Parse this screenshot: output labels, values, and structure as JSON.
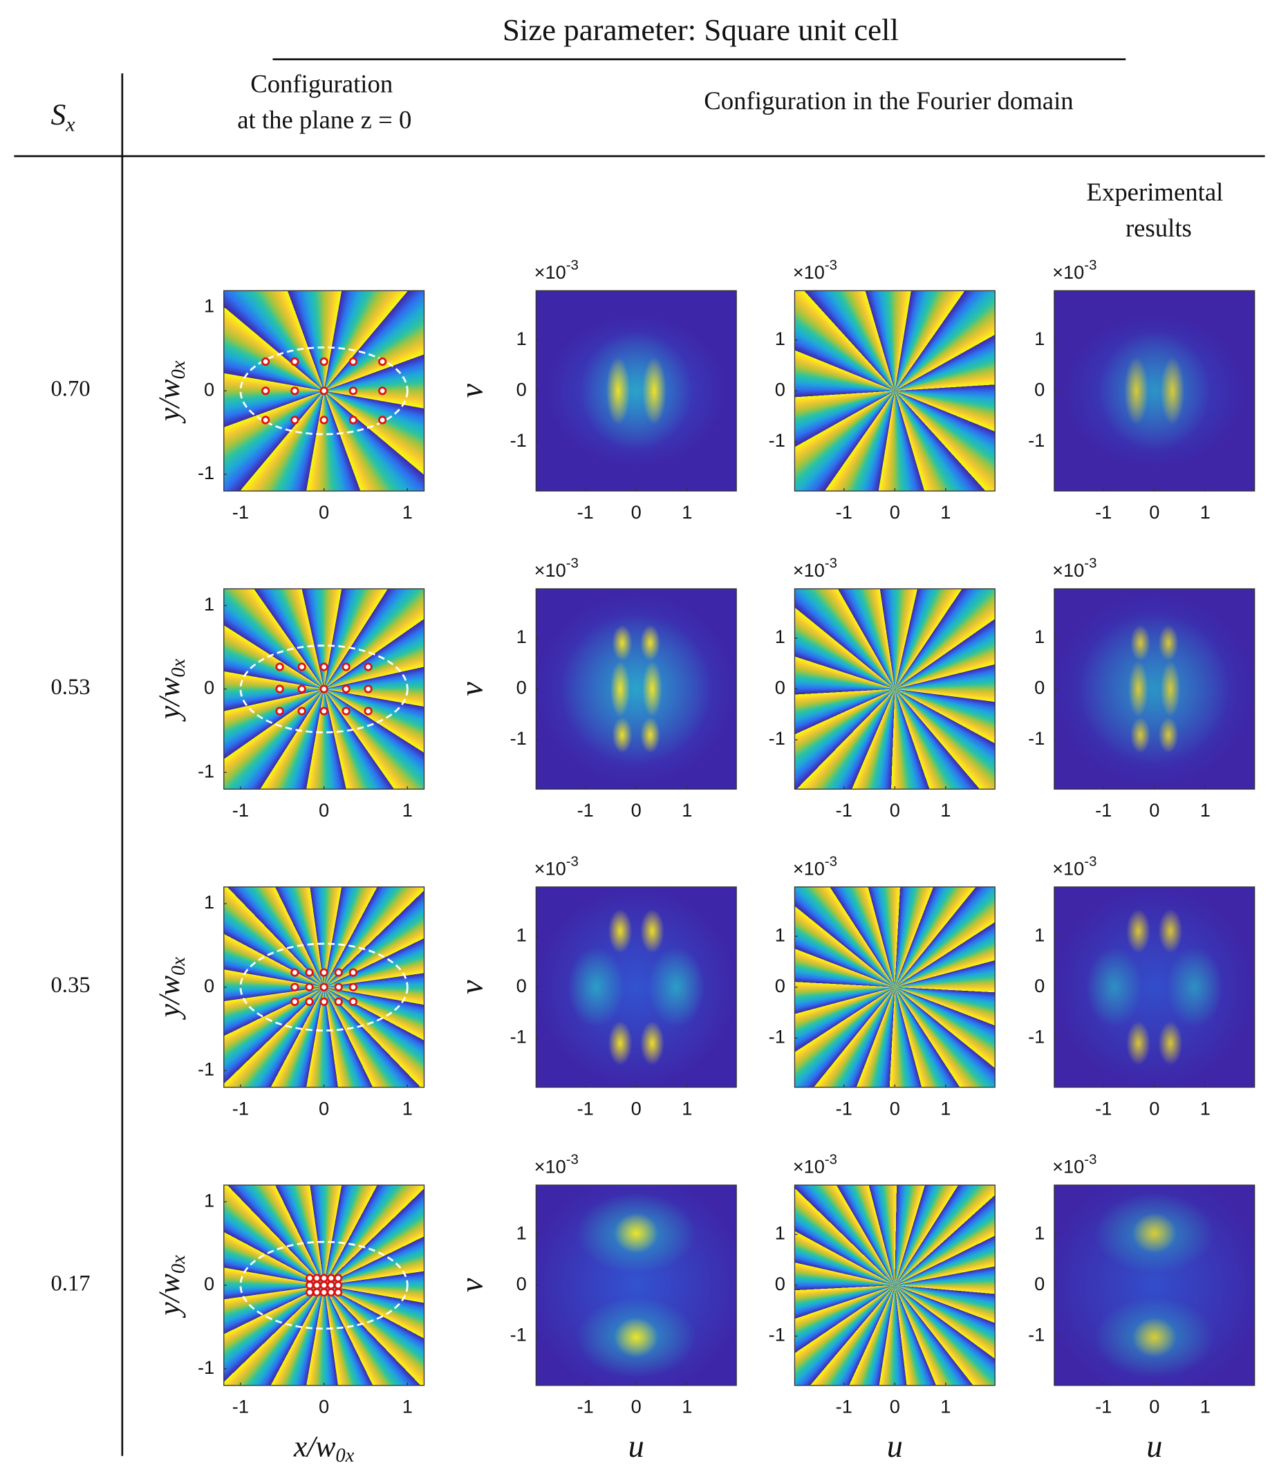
{
  "title": "Size parameter: Square unit cell",
  "header": {
    "sx_symbol": "S",
    "sx_subscript": "x",
    "spatial_column": [
      "Configuration",
      "at the plane z = 0"
    ],
    "fourier_columns": "Configuration in the Fourier domain",
    "experimental_column": [
      "Experimental",
      "results"
    ]
  },
  "axes": {
    "spatial": {
      "xlim": [
        -1.2,
        1.2
      ],
      "ylim": [
        -1.2,
        1.2
      ],
      "xticks": [
        -1,
        0,
        1
      ],
      "yticks": [
        -1,
        0,
        1
      ],
      "xlabel": [
        "x/w",
        "0x"
      ],
      "ylabel": [
        "y/w",
        "0x"
      ]
    },
    "fourier": {
      "xlim": [
        -1.97,
        1.97
      ],
      "ylim": [
        -1.97,
        1.97
      ],
      "xticks": [
        -1,
        0,
        1
      ],
      "yticks": [
        -1,
        0,
        1
      ],
      "multiplier": "×10",
      "exponent": "-3",
      "xlabel": "u",
      "ylabel": "v"
    }
  },
  "ellipse": {
    "rx": 1.0,
    "ry": 0.52
  },
  "rows": [
    {
      "sx": "0.70",
      "vortices": {
        "x": [
          -0.7,
          -0.35,
          0,
          0.35,
          0.7,
          -0.7,
          -0.35,
          0,
          0.35,
          0.7,
          -0.7,
          -0.35,
          0,
          0.35,
          0.7
        ],
        "y": [
          0.35,
          0.35,
          0.35,
          0.35,
          0.35,
          0,
          0,
          0,
          0,
          0,
          -0.35,
          -0.35,
          -0.35,
          -0.35,
          -0.35
        ]
      }
    },
    {
      "sx": "0.53",
      "vortices": {
        "x": [
          -0.53,
          -0.265,
          0,
          0.265,
          0.53,
          -0.53,
          -0.265,
          0,
          0.265,
          0.53,
          -0.53,
          -0.265,
          0,
          0.265,
          0.53
        ],
        "y": [
          0.265,
          0.265,
          0.265,
          0.265,
          0.265,
          0,
          0,
          0,
          0,
          0,
          -0.265,
          -0.265,
          -0.265,
          -0.265,
          -0.265
        ]
      }
    },
    {
      "sx": "0.35",
      "vortices": {
        "x": [
          -0.35,
          -0.175,
          0,
          0.175,
          0.35,
          -0.35,
          -0.175,
          0,
          0.175,
          0.35,
          -0.35,
          -0.175,
          0,
          0.175,
          0.35
        ],
        "y": [
          0.175,
          0.175,
          0.175,
          0.175,
          0.175,
          0,
          0,
          0,
          0,
          0,
          -0.175,
          -0.175,
          -0.175,
          -0.175,
          -0.175
        ]
      }
    },
    {
      "sx": "0.17",
      "vortices": {
        "x": [
          -0.17,
          -0.085,
          0,
          0.085,
          0.17,
          -0.17,
          -0.085,
          0,
          0.085,
          0.17,
          -0.17,
          -0.085,
          0,
          0.085,
          0.17
        ],
        "y": [
          0.085,
          0.085,
          0.085,
          0.085,
          0.085,
          0,
          0,
          0,
          0,
          0,
          -0.085,
          -0.085,
          -0.085,
          -0.085,
          -0.085
        ]
      }
    }
  ]
}
